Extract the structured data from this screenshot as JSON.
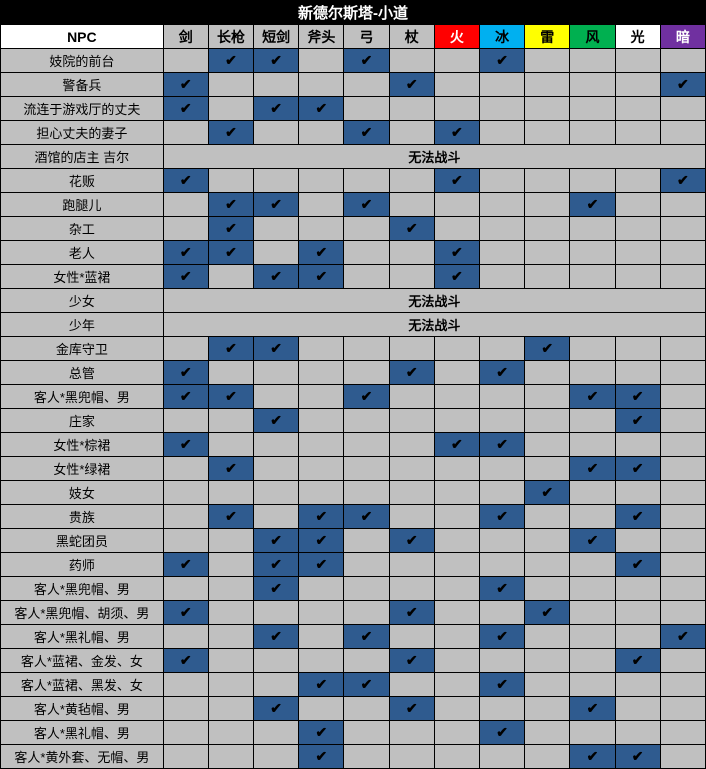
{
  "title": "新德尔斯塔-小道",
  "npc_header": "NPC",
  "checkmark": "✔",
  "columns": [
    {
      "label": "剑",
      "cls": "hdr-grey"
    },
    {
      "label": "长枪",
      "cls": "hdr-grey"
    },
    {
      "label": "短剑",
      "cls": "hdr-grey"
    },
    {
      "label": "斧头",
      "cls": "hdr-grey"
    },
    {
      "label": "弓",
      "cls": "hdr-grey"
    },
    {
      "label": "杖",
      "cls": "hdr-grey"
    },
    {
      "label": "火",
      "cls": "hdr-fire"
    },
    {
      "label": "冰",
      "cls": "hdr-ice"
    },
    {
      "label": "雷",
      "cls": "hdr-thunder"
    },
    {
      "label": "风",
      "cls": "hdr-wind"
    },
    {
      "label": "光",
      "cls": "hdr-light"
    },
    {
      "label": "暗",
      "cls": "hdr-dark"
    }
  ],
  "rows": [
    {
      "name": "妓院的前台",
      "cells": [
        0,
        1,
        1,
        0,
        1,
        0,
        0,
        1,
        0,
        0,
        0,
        0
      ]
    },
    {
      "name": "警备兵",
      "cells": [
        1,
        0,
        0,
        0,
        0,
        1,
        0,
        0,
        0,
        0,
        0,
        1
      ]
    },
    {
      "name": "流连于游戏厅的丈夫",
      "cells": [
        1,
        0,
        1,
        1,
        0,
        0,
        0,
        0,
        0,
        0,
        0,
        0
      ]
    },
    {
      "name": "担心丈夫的妻子",
      "cells": [
        0,
        1,
        0,
        0,
        1,
        0,
        1,
        0,
        0,
        0,
        0,
        0
      ]
    },
    {
      "name": "酒馆的店主 吉尔",
      "span": "无法战斗"
    },
    {
      "name": "花贩",
      "cells": [
        1,
        0,
        0,
        0,
        0,
        0,
        1,
        0,
        0,
        0,
        0,
        1
      ]
    },
    {
      "name": "跑腿儿",
      "cells": [
        0,
        1,
        1,
        0,
        1,
        0,
        0,
        0,
        0,
        1,
        0,
        0
      ]
    },
    {
      "name": "杂工",
      "cells": [
        0,
        1,
        0,
        0,
        0,
        1,
        0,
        0,
        0,
        0,
        0,
        0
      ]
    },
    {
      "name": "老人",
      "cells": [
        1,
        1,
        0,
        1,
        0,
        0,
        1,
        0,
        0,
        0,
        0,
        0
      ]
    },
    {
      "name": "女性*蓝裙",
      "cells": [
        1,
        0,
        1,
        1,
        0,
        0,
        1,
        0,
        0,
        0,
        0,
        0
      ]
    },
    {
      "name": "少女",
      "span": "无法战斗"
    },
    {
      "name": "少年",
      "span": "无法战斗"
    },
    {
      "name": "金库守卫",
      "cells": [
        0,
        1,
        1,
        0,
        0,
        0,
        0,
        0,
        1,
        0,
        0,
        0
      ]
    },
    {
      "name": "总管",
      "cells": [
        1,
        0,
        0,
        0,
        0,
        1,
        0,
        1,
        0,
        0,
        0,
        0
      ]
    },
    {
      "name": "客人*黑兜帽、男",
      "cells": [
        1,
        1,
        0,
        0,
        1,
        0,
        0,
        0,
        0,
        1,
        1,
        0
      ]
    },
    {
      "name": "庄家",
      "cells": [
        0,
        0,
        1,
        0,
        0,
        0,
        0,
        0,
        0,
        0,
        1,
        0
      ]
    },
    {
      "name": "女性*棕裙",
      "cells": [
        1,
        0,
        0,
        0,
        0,
        0,
        1,
        1,
        0,
        0,
        0,
        0
      ]
    },
    {
      "name": "女性*绿裙",
      "cells": [
        0,
        1,
        0,
        0,
        0,
        0,
        0,
        0,
        0,
        1,
        1,
        0
      ]
    },
    {
      "name": "妓女",
      "cells": [
        0,
        0,
        0,
        0,
        0,
        0,
        0,
        0,
        1,
        0,
        0,
        0
      ]
    },
    {
      "name": "贵族",
      "cells": [
        0,
        1,
        0,
        1,
        1,
        0,
        0,
        1,
        0,
        0,
        1,
        0
      ]
    },
    {
      "name": "黑蛇团员",
      "cells": [
        0,
        0,
        1,
        1,
        0,
        1,
        0,
        0,
        0,
        1,
        0,
        0
      ]
    },
    {
      "name": "药师",
      "cells": [
        1,
        0,
        1,
        1,
        0,
        0,
        0,
        0,
        0,
        0,
        1,
        0
      ]
    },
    {
      "name": "客人*黑兜帽、男",
      "cells": [
        0,
        0,
        1,
        0,
        0,
        0,
        0,
        1,
        0,
        0,
        0,
        0
      ]
    },
    {
      "name": "客人*黑兜帽、胡须、男",
      "cells": [
        1,
        0,
        0,
        0,
        0,
        1,
        0,
        0,
        1,
        0,
        0,
        0
      ]
    },
    {
      "name": "客人*黑礼帽、男",
      "cells": [
        0,
        0,
        1,
        0,
        1,
        0,
        0,
        1,
        0,
        0,
        0,
        1
      ]
    },
    {
      "name": "客人*蓝裙、金发、女",
      "cells": [
        1,
        0,
        0,
        0,
        0,
        1,
        0,
        0,
        0,
        0,
        1,
        0
      ]
    },
    {
      "name": "客人*蓝裙、黑发、女",
      "cells": [
        0,
        0,
        0,
        1,
        1,
        0,
        0,
        1,
        0,
        0,
        0,
        0
      ]
    },
    {
      "name": "客人*黄毡帽、男",
      "cells": [
        0,
        0,
        1,
        0,
        0,
        1,
        0,
        0,
        0,
        1,
        0,
        0
      ]
    },
    {
      "name": "客人*黑礼帽、男",
      "cells": [
        0,
        0,
        0,
        1,
        0,
        0,
        0,
        1,
        0,
        0,
        0,
        0
      ]
    },
    {
      "name": "客人*黄外套、无帽、男",
      "cells": [
        0,
        0,
        0,
        1,
        0,
        0,
        0,
        0,
        0,
        1,
        1,
        0
      ]
    }
  ],
  "colors": {
    "cell_on": "#2f5b8f",
    "cell_off": "#c0c0c0",
    "title_bg": "#000000",
    "title_fg": "#ffffff"
  }
}
